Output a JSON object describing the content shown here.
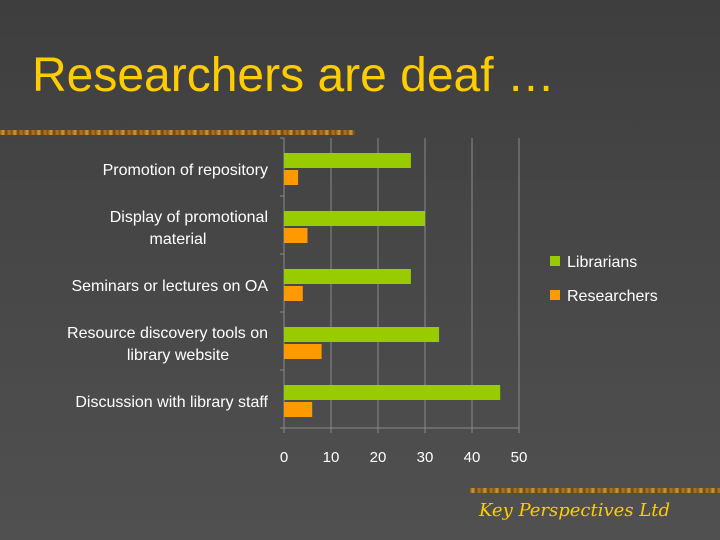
{
  "slide": {
    "title": "Researchers are deaf …",
    "footer_brand": "Key Perspectives Ltd"
  },
  "colors": {
    "title": "#ffcc00",
    "librarians": "#99cc00",
    "researchers": "#ff9900",
    "text": "#ffffff",
    "grid": "#8a8a8a"
  },
  "chart_data": {
    "type": "bar",
    "orientation": "horizontal",
    "categories": [
      "Promotion of repository",
      "Display of promotional material",
      "Seminars or lectures on OA",
      "Resource discovery tools on library website",
      "Discussion with library staff"
    ],
    "category_lines": [
      [
        "Promotion of repository"
      ],
      [
        "Display of promotional",
        "material"
      ],
      [
        "Seminars or lectures on OA"
      ],
      [
        "Resource discovery tools on",
        "library website"
      ],
      [
        "Discussion with library staff"
      ]
    ],
    "series": [
      {
        "name": "Librarians",
        "values": [
          27,
          30,
          27,
          33,
          46
        ]
      },
      {
        "name": "Researchers",
        "values": [
          3,
          5,
          4,
          8,
          6
        ]
      }
    ],
    "xlim": [
      0,
      50
    ],
    "xticks": [
      "0",
      "10",
      "20",
      "30",
      "40",
      "50"
    ],
    "grid": true,
    "legend": "right"
  }
}
